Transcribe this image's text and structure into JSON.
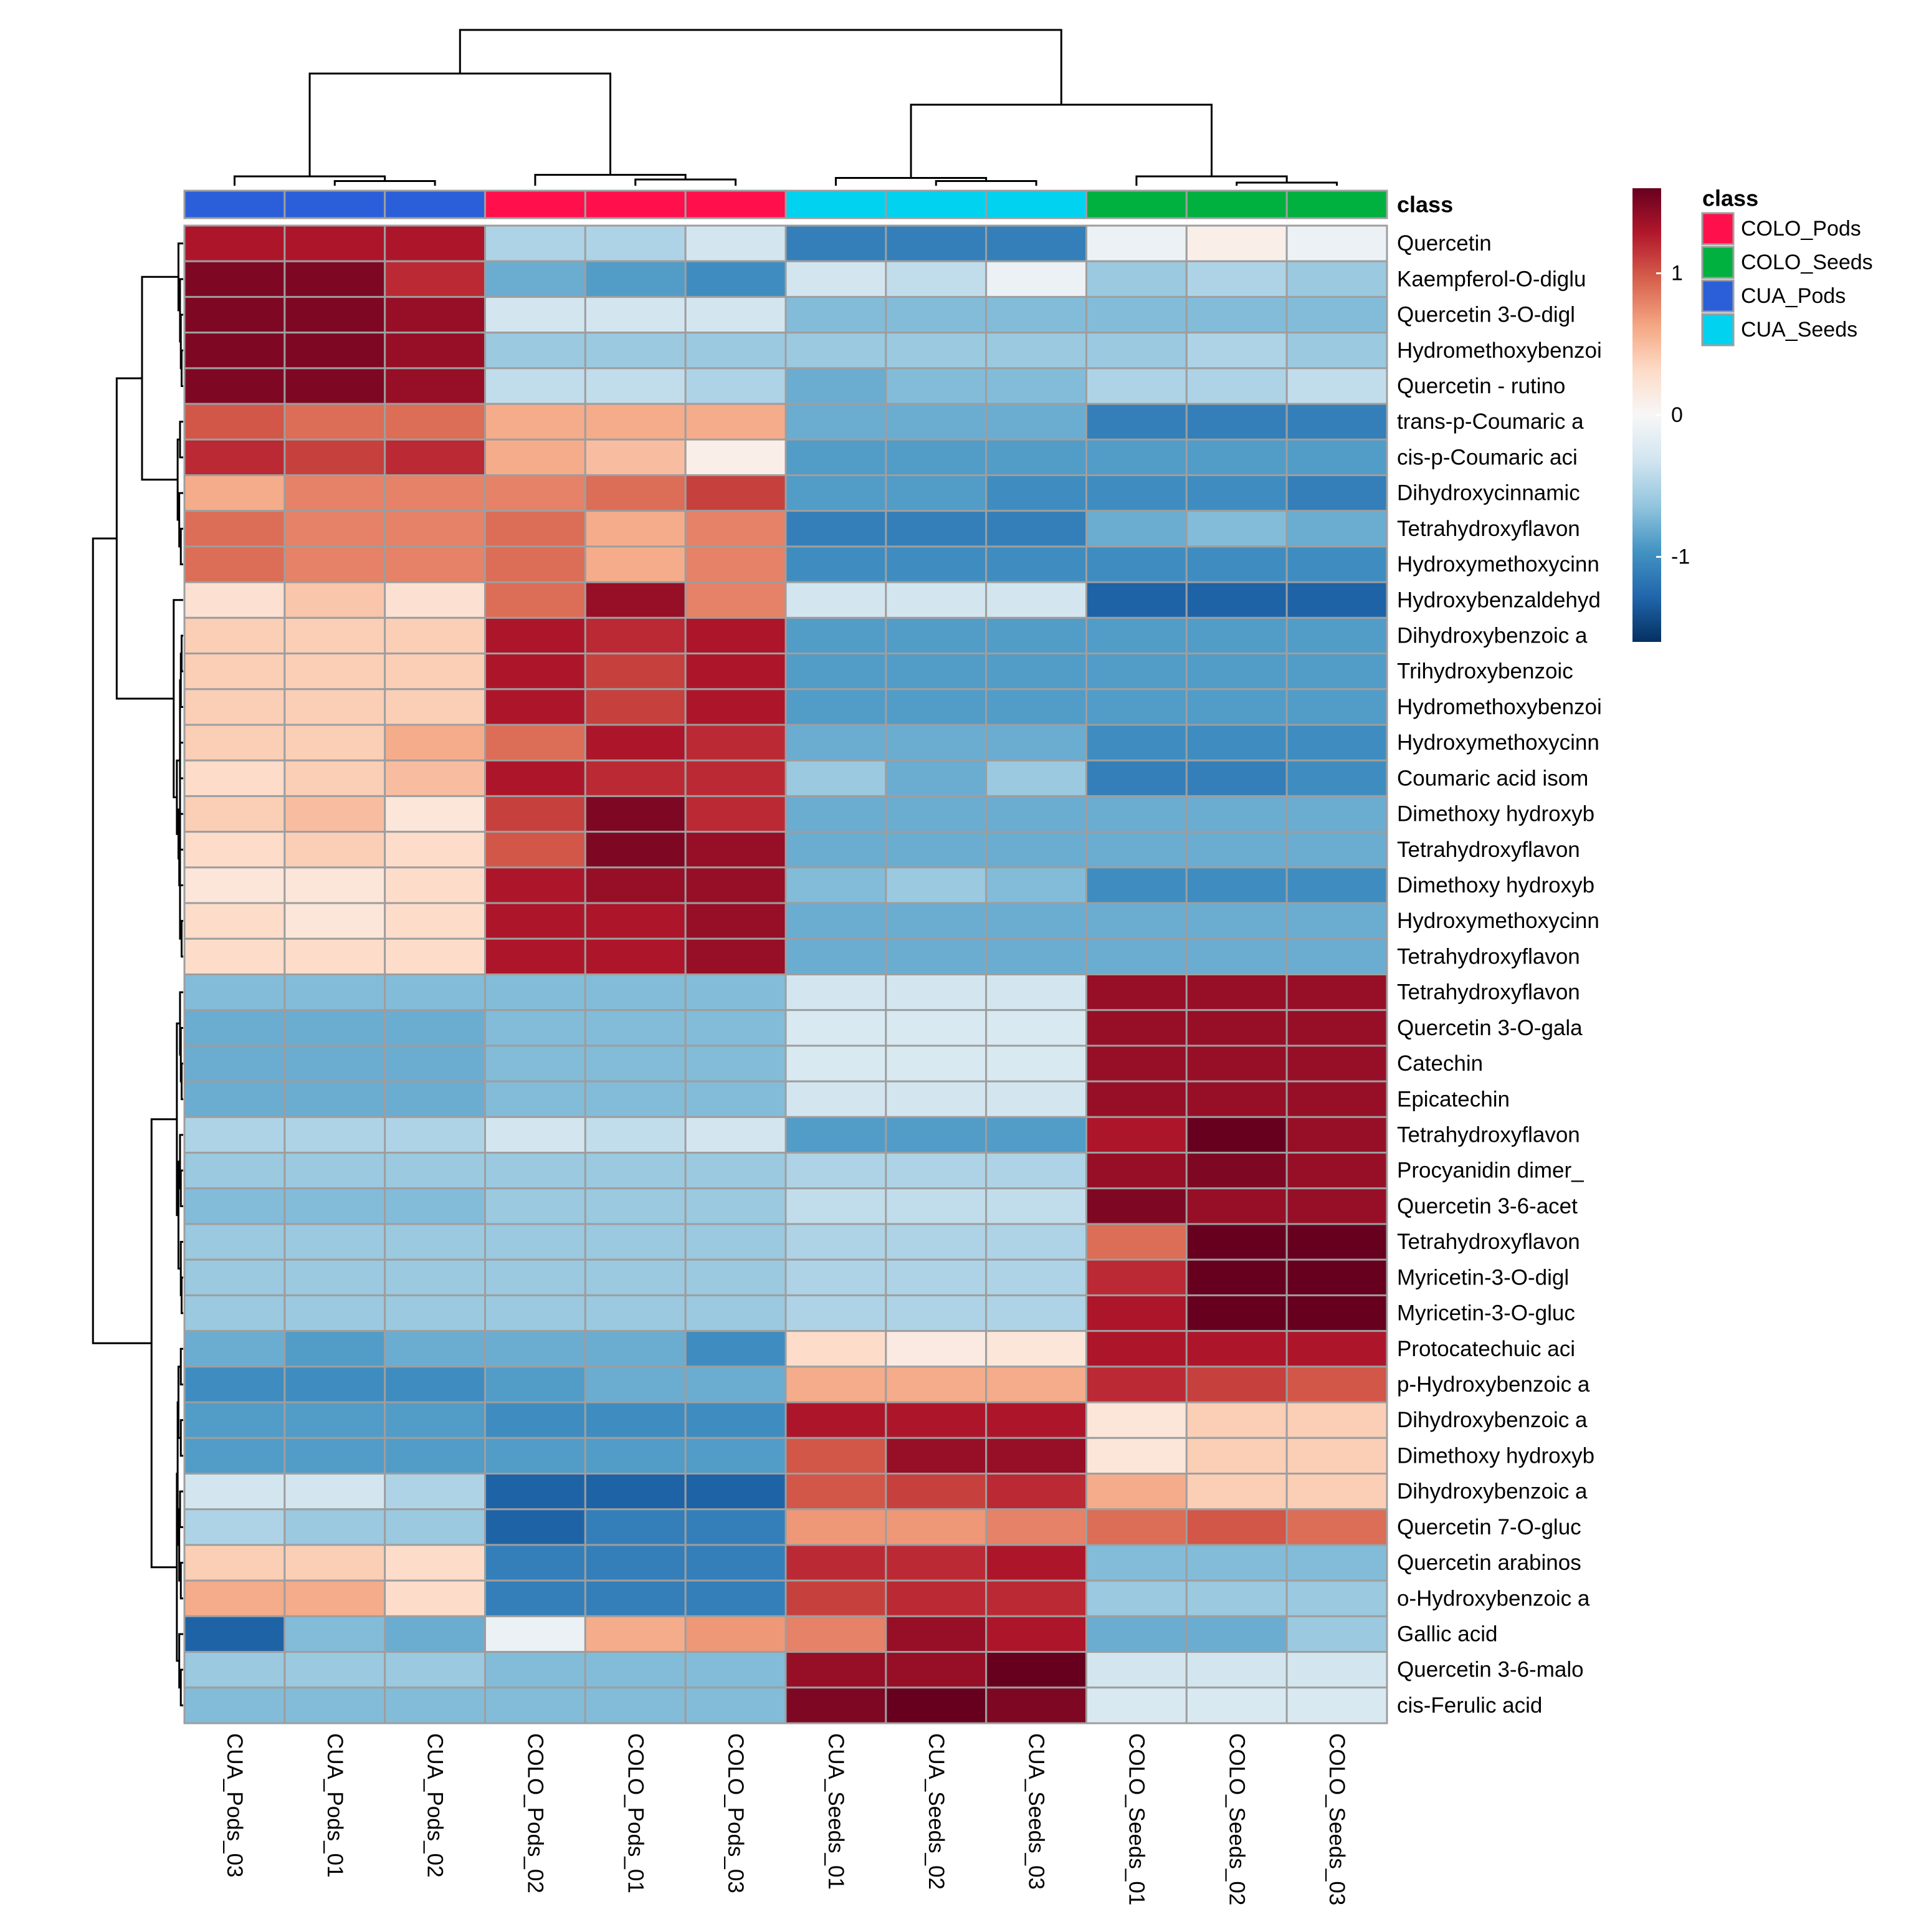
{
  "chart_data": {
    "type": "heatmap",
    "title": "",
    "xlabel": "",
    "ylabel": "",
    "colorbar": {
      "min": -1.6,
      "max": 1.6,
      "ticks": [
        {
          "value": 1,
          "label": "1"
        },
        {
          "value": 0,
          "label": "0"
        },
        {
          "value": -1,
          "label": "-1"
        }
      ],
      "palette": [
        "#053061",
        "#2166ac",
        "#4393c3",
        "#92c5de",
        "#d1e5f0",
        "#f7f7f7",
        "#fddbc7",
        "#f4a582",
        "#d6604d",
        "#b2182b",
        "#67001f"
      ]
    },
    "annotation": {
      "title": "class",
      "legend_title": "class",
      "legend": [
        {
          "name": "COLO_Pods",
          "color": "#ff0f4b"
        },
        {
          "name": "COLO_Seeds",
          "color": "#00b140"
        },
        {
          "name": "CUA_Pods",
          "color": "#2b5fd9"
        },
        {
          "name": "CUA_Seeds",
          "color": "#00d2f0"
        }
      ]
    },
    "columns": [
      {
        "name": "CUA_Pods_03",
        "class": "CUA_Pods"
      },
      {
        "name": "CUA_Pods_01",
        "class": "CUA_Pods"
      },
      {
        "name": "CUA_Pods_02",
        "class": "CUA_Pods"
      },
      {
        "name": "COLO_Pods_02",
        "class": "COLO_Pods"
      },
      {
        "name": "COLO_Pods_01",
        "class": "COLO_Pods"
      },
      {
        "name": "COLO_Pods_03",
        "class": "COLO_Pods"
      },
      {
        "name": "CUA_Seeds_01",
        "class": "CUA_Seeds"
      },
      {
        "name": "CUA_Seeds_02",
        "class": "CUA_Seeds"
      },
      {
        "name": "CUA_Seeds_03",
        "class": "CUA_Seeds"
      },
      {
        "name": "COLO_Seeds_01",
        "class": "COLO_Seeds"
      },
      {
        "name": "COLO_Seeds_02",
        "class": "COLO_Seeds"
      },
      {
        "name": "COLO_Seeds_03",
        "class": "COLO_Seeds"
      }
    ],
    "rows": [
      {
        "name": "Quercetin",
        "values": [
          1.3,
          1.3,
          1.3,
          -0.5,
          -0.5,
          -0.3,
          -1.1,
          -1.1,
          -1.1,
          -0.1,
          0.1,
          -0.1
        ]
      },
      {
        "name": "Kaempferol-O-diglu",
        "values": [
          1.5,
          1.5,
          1.2,
          -0.8,
          -0.9,
          -1.0,
          -0.3,
          -0.4,
          -0.1,
          -0.6,
          -0.5,
          -0.6
        ]
      },
      {
        "name": "Quercetin 3-O-digl",
        "values": [
          1.5,
          1.5,
          1.4,
          -0.3,
          -0.3,
          -0.3,
          -0.7,
          -0.7,
          -0.7,
          -0.7,
          -0.7,
          -0.7
        ]
      },
      {
        "name": "Hydromethoxybenzoi",
        "values": [
          1.5,
          1.5,
          1.4,
          -0.6,
          -0.6,
          -0.6,
          -0.6,
          -0.6,
          -0.6,
          -0.6,
          -0.5,
          -0.6
        ]
      },
      {
        "name": "Quercetin - rutino",
        "values": [
          1.5,
          1.5,
          1.4,
          -0.4,
          -0.4,
          -0.5,
          -0.8,
          -0.7,
          -0.7,
          -0.5,
          -0.5,
          -0.4
        ]
      },
      {
        "name": "trans-p-Coumaric a",
        "values": [
          1.0,
          0.9,
          0.9,
          0.6,
          0.6,
          0.6,
          -0.8,
          -0.8,
          -0.8,
          -1.1,
          -1.1,
          -1.1
        ]
      },
      {
        "name": "cis-p-Coumaric aci",
        "values": [
          1.2,
          1.1,
          1.2,
          0.6,
          0.5,
          0.1,
          -0.9,
          -0.9,
          -0.9,
          -0.9,
          -0.9,
          -0.9
        ]
      },
      {
        "name": "Dihydroxycinnamic",
        "values": [
          0.6,
          0.8,
          0.8,
          0.8,
          0.9,
          1.1,
          -0.9,
          -0.9,
          -1.0,
          -1.0,
          -1.0,
          -1.1
        ]
      },
      {
        "name": "Tetrahydroxyflavon",
        "values": [
          0.9,
          0.8,
          0.8,
          0.9,
          0.6,
          0.8,
          -1.1,
          -1.1,
          -1.1,
          -0.8,
          -0.7,
          -0.8
        ]
      },
      {
        "name": "Hydroxymethoxycinn",
        "values": [
          0.9,
          0.8,
          0.8,
          0.9,
          0.6,
          0.8,
          -1.0,
          -1.0,
          -1.0,
          -1.0,
          -1.0,
          -1.0
        ]
      },
      {
        "name": "Hydroxybenzaldehyd",
        "values": [
          0.25,
          0.45,
          0.25,
          0.9,
          1.4,
          0.8,
          -0.3,
          -0.3,
          -0.3,
          -1.3,
          -1.3,
          -1.3
        ]
      },
      {
        "name": "Dihydroxybenzoic a",
        "values": [
          0.4,
          0.4,
          0.4,
          1.3,
          1.2,
          1.3,
          -0.9,
          -0.9,
          -0.9,
          -0.9,
          -0.9,
          -0.9
        ]
      },
      {
        "name": "Trihydroxybenzoic",
        "values": [
          0.4,
          0.4,
          0.4,
          1.3,
          1.1,
          1.3,
          -0.9,
          -0.9,
          -0.9,
          -0.9,
          -0.9,
          -0.9
        ]
      },
      {
        "name": "Hydromethoxybenzoi",
        "values": [
          0.4,
          0.4,
          0.4,
          1.3,
          1.1,
          1.3,
          -0.9,
          -0.9,
          -0.9,
          -0.9,
          -0.9,
          -0.9
        ]
      },
      {
        "name": "Hydroxymethoxycinn",
        "values": [
          0.4,
          0.4,
          0.6,
          0.9,
          1.3,
          1.2,
          -0.8,
          -0.8,
          -0.8,
          -1.0,
          -1.0,
          -1.0
        ]
      },
      {
        "name": "Coumaric acid isom",
        "values": [
          0.3,
          0.4,
          0.5,
          1.3,
          1.2,
          1.2,
          -0.6,
          -0.8,
          -0.6,
          -1.1,
          -1.1,
          -1.0
        ]
      },
      {
        "name": "Dimethoxy hydroxyb",
        "values": [
          0.4,
          0.5,
          0.2,
          1.1,
          1.5,
          1.2,
          -0.8,
          -0.8,
          -0.8,
          -0.8,
          -0.8,
          -0.8
        ]
      },
      {
        "name": "Tetrahydroxyflavon",
        "values": [
          0.3,
          0.4,
          0.3,
          1.0,
          1.5,
          1.4,
          -0.8,
          -0.8,
          -0.8,
          -0.8,
          -0.8,
          -0.8
        ]
      },
      {
        "name": "Dimethoxy hydroxyb",
        "values": [
          0.2,
          0.2,
          0.3,
          1.3,
          1.4,
          1.4,
          -0.7,
          -0.6,
          -0.7,
          -1.0,
          -1.0,
          -1.0
        ]
      },
      {
        "name": "Hydroxymethoxycinn",
        "values": [
          0.3,
          0.2,
          0.3,
          1.3,
          1.3,
          1.4,
          -0.8,
          -0.8,
          -0.8,
          -0.8,
          -0.8,
          -0.8
        ]
      },
      {
        "name": "Tetrahydroxyflavon",
        "values": [
          0.3,
          0.3,
          0.3,
          1.3,
          1.3,
          1.4,
          -0.8,
          -0.8,
          -0.8,
          -0.8,
          -0.8,
          -0.8
        ]
      },
      {
        "name": "Tetrahydroxyflavon",
        "values": [
          -0.7,
          -0.7,
          -0.7,
          -0.7,
          -0.7,
          -0.7,
          -0.3,
          -0.3,
          -0.3,
          1.4,
          1.4,
          1.4
        ]
      },
      {
        "name": "Quercetin 3-O-gala",
        "values": [
          -0.8,
          -0.8,
          -0.8,
          -0.7,
          -0.7,
          -0.7,
          -0.25,
          -0.25,
          -0.25,
          1.4,
          1.4,
          1.4
        ]
      },
      {
        "name": "Catechin",
        "values": [
          -0.8,
          -0.8,
          -0.8,
          -0.7,
          -0.7,
          -0.7,
          -0.25,
          -0.25,
          -0.25,
          1.4,
          1.4,
          1.4
        ]
      },
      {
        "name": "Epicatechin",
        "values": [
          -0.8,
          -0.8,
          -0.8,
          -0.7,
          -0.7,
          -0.7,
          -0.3,
          -0.3,
          -0.3,
          1.4,
          1.4,
          1.4
        ]
      },
      {
        "name": "Tetrahydroxyflavon",
        "values": [
          -0.5,
          -0.5,
          -0.5,
          -0.3,
          -0.4,
          -0.3,
          -0.9,
          -0.9,
          -0.9,
          1.3,
          1.6,
          1.4
        ]
      },
      {
        "name": "Procyanidin dimer_",
        "values": [
          -0.6,
          -0.6,
          -0.6,
          -0.6,
          -0.6,
          -0.6,
          -0.5,
          -0.5,
          -0.5,
          1.4,
          1.5,
          1.4
        ]
      },
      {
        "name": "Quercetin 3-6-acet",
        "values": [
          -0.7,
          -0.7,
          -0.7,
          -0.6,
          -0.6,
          -0.6,
          -0.4,
          -0.4,
          -0.4,
          1.5,
          1.4,
          1.4
        ]
      },
      {
        "name": "Tetrahydroxyflavon",
        "values": [
          -0.6,
          -0.6,
          -0.6,
          -0.6,
          -0.6,
          -0.6,
          -0.5,
          -0.5,
          -0.5,
          0.9,
          1.6,
          1.8
        ]
      },
      {
        "name": "Myricetin-3-O-digl",
        "values": [
          -0.6,
          -0.6,
          -0.6,
          -0.6,
          -0.6,
          -0.6,
          -0.5,
          -0.5,
          -0.5,
          1.2,
          1.6,
          1.7
        ]
      },
      {
        "name": "Myricetin-3-O-gluc",
        "values": [
          -0.6,
          -0.6,
          -0.6,
          -0.6,
          -0.6,
          -0.6,
          -0.5,
          -0.5,
          -0.5,
          1.3,
          1.6,
          1.7
        ]
      },
      {
        "name": "Protocatechuic aci",
        "values": [
          -0.8,
          -0.9,
          -0.8,
          -0.8,
          -0.8,
          -1.0,
          0.3,
          0.15,
          0.2,
          1.3,
          1.3,
          1.3
        ]
      },
      {
        "name": "p-Hydroxybenzoic a",
        "values": [
          -1.0,
          -1.0,
          -1.0,
          -0.9,
          -0.8,
          -0.8,
          0.6,
          0.6,
          0.6,
          1.2,
          1.1,
          1.0
        ]
      },
      {
        "name": "Dihydroxybenzoic a",
        "values": [
          -0.9,
          -0.9,
          -0.9,
          -1.0,
          -1.0,
          -1.0,
          1.3,
          1.3,
          1.3,
          0.2,
          0.4,
          0.4
        ]
      },
      {
        "name": "Dimethoxy hydroxyb",
        "values": [
          -0.9,
          -0.9,
          -0.9,
          -0.9,
          -0.9,
          -0.9,
          1.0,
          1.4,
          1.4,
          0.2,
          0.4,
          0.4
        ]
      },
      {
        "name": "Dihydroxybenzoic a",
        "values": [
          -0.3,
          -0.3,
          -0.5,
          -1.3,
          -1.3,
          -1.3,
          1.0,
          1.1,
          1.2,
          0.6,
          0.4,
          0.4
        ]
      },
      {
        "name": "Quercetin 7-O-gluc",
        "values": [
          -0.5,
          -0.6,
          -0.6,
          -1.3,
          -1.1,
          -1.1,
          0.7,
          0.7,
          0.8,
          0.9,
          1.0,
          0.9
        ]
      },
      {
        "name": "Quercetin arabinos",
        "values": [
          0.4,
          0.4,
          0.3,
          -1.1,
          -1.1,
          -1.1,
          1.2,
          1.2,
          1.3,
          -0.7,
          -0.7,
          -0.7
        ]
      },
      {
        "name": "o-Hydroxybenzoic a",
        "values": [
          0.6,
          0.6,
          0.3,
          -1.1,
          -1.1,
          -1.1,
          1.1,
          1.2,
          1.2,
          -0.6,
          -0.6,
          -0.6
        ]
      },
      {
        "name": "Gallic acid",
        "values": [
          -1.3,
          -0.7,
          -0.8,
          -0.1,
          0.6,
          0.7,
          0.8,
          1.4,
          1.3,
          -0.8,
          -0.8,
          -0.6
        ]
      },
      {
        "name": "Quercetin 3-6-malo",
        "values": [
          -0.6,
          -0.6,
          -0.6,
          -0.7,
          -0.7,
          -0.7,
          1.4,
          1.4,
          1.6,
          -0.3,
          -0.3,
          -0.3
        ]
      },
      {
        "name": "cis-Ferulic acid",
        "values": [
          -0.7,
          -0.7,
          -0.7,
          -0.7,
          -0.7,
          -0.7,
          1.5,
          1.6,
          1.5,
          -0.25,
          -0.25,
          -0.25
        ]
      }
    ],
    "col_dendrogram": {
      "leaf_order": [
        0,
        1,
        2,
        3,
        4,
        5,
        6,
        7,
        8,
        9,
        10,
        11
      ],
      "merges": [
        [
          1,
          2,
          0.03
        ],
        [
          0,
          12,
          0.06
        ],
        [
          4,
          5,
          0.04
        ],
        [
          3,
          14,
          0.07
        ],
        [
          13,
          15,
          0.72
        ],
        [
          7,
          8,
          0.03
        ],
        [
          6,
          17,
          0.05
        ],
        [
          10,
          11,
          0.02
        ],
        [
          9,
          19,
          0.06
        ],
        [
          18,
          20,
          0.52
        ],
        [
          16,
          21,
          1.0
        ]
      ]
    },
    "row_dendrogram": {
      "merges": [
        [
          3,
          4,
          0.01
        ],
        [
          2,
          42,
          0.015
        ],
        [
          1,
          43,
          0.02
        ],
        [
          0,
          44,
          0.03
        ],
        [
          5,
          6,
          0.02
        ],
        [
          8,
          9,
          0.015
        ],
        [
          7,
          47,
          0.025
        ],
        [
          46,
          48,
          0.035
        ],
        [
          45,
          49,
          0.26
        ],
        [
          11,
          12,
          0.01
        ],
        [
          13,
          51,
          0.015
        ],
        [
          19,
          20,
          0.01
        ],
        [
          52,
          53,
          0.02
        ],
        [
          16,
          17,
          0.02
        ],
        [
          18,
          55,
          0.025
        ],
        [
          54,
          56,
          0.03
        ],
        [
          14,
          15,
          0.02
        ],
        [
          57,
          58,
          0.04
        ],
        [
          10,
          59,
          0.06
        ],
        [
          50,
          60,
          0.42
        ],
        [
          23,
          24,
          0.01
        ],
        [
          22,
          62,
          0.015
        ],
        [
          21,
          63,
          0.02
        ],
        [
          26,
          27,
          0.015
        ],
        [
          25,
          65,
          0.02
        ],
        [
          29,
          30,
          0.01
        ],
        [
          28,
          67,
          0.015
        ],
        [
          66,
          68,
          0.03
        ],
        [
          64,
          69,
          0.04
        ],
        [
          31,
          32,
          0.015
        ],
        [
          33,
          34,
          0.015
        ],
        [
          71,
          72,
          0.03
        ],
        [
          35,
          36,
          0.02
        ],
        [
          37,
          38,
          0.015
        ],
        [
          74,
          75,
          0.025
        ],
        [
          73,
          76,
          0.035
        ],
        [
          40,
          41,
          0.015
        ],
        [
          39,
          78,
          0.025
        ],
        [
          77,
          79,
          0.04
        ],
        [
          70,
          80,
          0.2
        ],
        [
          61,
          81,
          0.57
        ]
      ]
    }
  }
}
